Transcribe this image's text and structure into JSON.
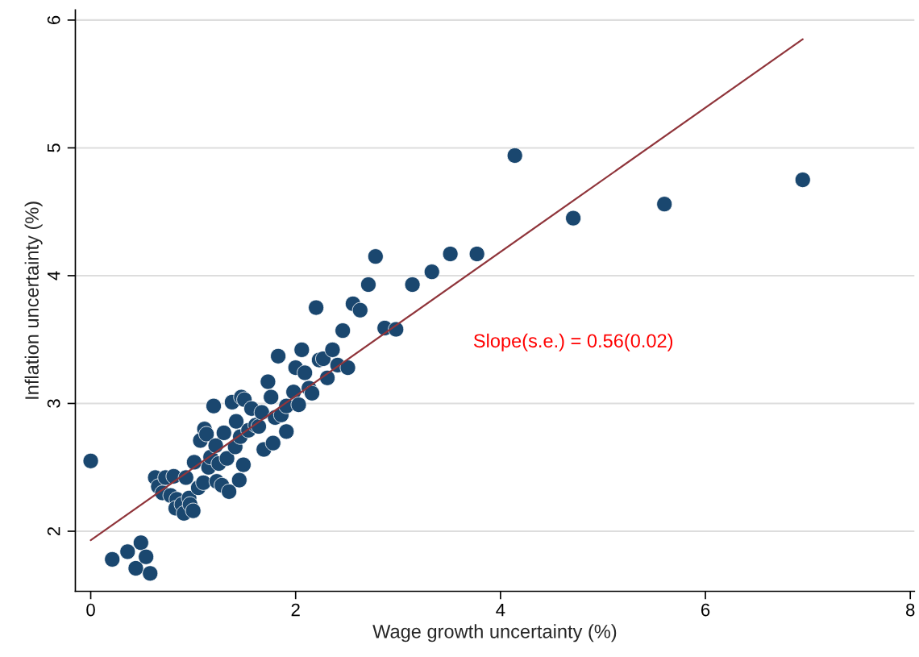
{
  "chart_data": {
    "type": "scatter",
    "xlabel": "Wage growth uncertainty (%)",
    "ylabel": "Inflation uncertainty (%)",
    "xlim": [
      -0.15,
      8.04
    ],
    "ylim": [
      1.53,
      6.08
    ],
    "xticks": [
      0,
      2,
      4,
      6,
      8
    ],
    "yticks": [
      2,
      3,
      4,
      5,
      6
    ],
    "grid": "y",
    "marker": "circle",
    "legend": false,
    "series": [
      {
        "color": "#1a476f",
        "x": [
          0,
          0.21,
          0.36,
          0.44,
          0.49,
          0.54,
          0.58,
          0.63,
          0.66,
          0.73,
          0.7,
          0.81,
          0.78,
          0.84,
          0.83,
          0.89,
          0.91,
          0.96,
          0.97,
          1.0,
          0.93,
          1.01,
          1.05,
          1.1,
          1.07,
          1.11,
          1.13,
          1.15,
          1.17,
          1.2,
          1.22,
          1.23,
          1.25,
          1.28,
          1.3,
          1.33,
          1.35,
          1.38,
          1.41,
          1.42,
          1.45,
          1.46,
          1.47,
          1.5,
          1.49,
          1.54,
          1.57,
          1.61,
          1.64,
          1.67,
          1.69,
          1.73,
          1.76,
          1.78,
          1.8,
          1.83,
          1.86,
          1.91,
          1.91,
          1.98,
          2.0,
          2.03,
          2.06,
          2.09,
          2.13,
          2.16,
          2.2,
          2.23,
          2.27,
          2.31,
          2.36,
          2.41,
          2.46,
          2.51,
          2.56,
          2.63,
          2.71,
          2.78,
          2.87,
          2.98,
          3.14,
          3.33,
          3.51,
          3.77,
          4.14,
          4.71,
          5.6,
          6.95
        ],
        "values": [
          2.55,
          1.78,
          1.84,
          1.71,
          1.91,
          1.8,
          1.67,
          2.42,
          2.35,
          2.42,
          2.3,
          2.43,
          2.28,
          2.25,
          2.18,
          2.21,
          2.14,
          2.26,
          2.21,
          2.16,
          2.42,
          2.54,
          2.34,
          2.38,
          2.71,
          2.8,
          2.76,
          2.5,
          2.58,
          2.98,
          2.67,
          2.39,
          2.53,
          2.36,
          2.77,
          2.57,
          2.31,
          3.01,
          2.66,
          2.86,
          2.4,
          2.74,
          3.05,
          3.03,
          2.52,
          2.79,
          2.96,
          2.83,
          2.82,
          2.93,
          2.64,
          3.17,
          3.05,
          2.69,
          2.89,
          3.37,
          2.91,
          2.78,
          2.98,
          3.09,
          3.28,
          2.99,
          3.42,
          3.24,
          3.12,
          3.08,
          3.75,
          3.34,
          3.35,
          3.2,
          3.42,
          3.3,
          3.57,
          3.28,
          3.78,
          3.73,
          3.93,
          4.15,
          3.59,
          3.58,
          3.93,
          4.03,
          4.17,
          4.17,
          4.94,
          4.45,
          4.56,
          4.75
        ]
      },
      {
        "type": "line",
        "color": "#90353b",
        "marker": "none",
        "x": [
          0,
          6.95
        ],
        "values": [
          1.93,
          5.85
        ]
      }
    ],
    "annotations": [
      "Slope(s.e.) = 0.56(0.02)"
    ]
  }
}
